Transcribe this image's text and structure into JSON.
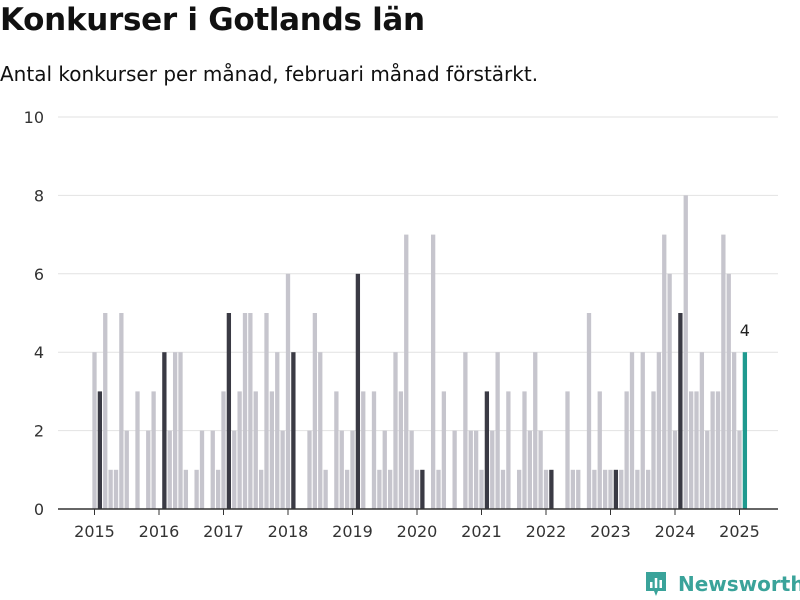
{
  "title": "Konkurser i Gotlands län",
  "subtitle": "Antal konkurser per månad, februari månad förstärkt.",
  "brand": "Newsworthy",
  "colors": {
    "regular": "#c6c5cd",
    "february": "#3a3a44",
    "latest": "#1f9a8f",
    "grid": "#e2e2e2",
    "axis": "#333333",
    "brand": "#3aa39a"
  },
  "chart_data": {
    "type": "bar",
    "x_ticks": [
      "2015",
      "2016",
      "2017",
      "2018",
      "2019",
      "2020",
      "2021",
      "2022",
      "2023",
      "2024",
      "2025"
    ],
    "y_ticks": [
      0,
      2,
      4,
      6,
      8,
      10
    ],
    "ylim": [
      0,
      10
    ],
    "grid": true,
    "start": "2015-01",
    "values": [
      4,
      3,
      5,
      1,
      1,
      5,
      2,
      0,
      3,
      0,
      2,
      3,
      0,
      4,
      2,
      4,
      4,
      1,
      0,
      1,
      2,
      0,
      2,
      1,
      3,
      5,
      2,
      3,
      5,
      5,
      3,
      1,
      5,
      3,
      4,
      2,
      6,
      4,
      0,
      0,
      2,
      5,
      4,
      1,
      0,
      3,
      2,
      1,
      2,
      6,
      3,
      0,
      3,
      1,
      2,
      1,
      4,
      3,
      7,
      2,
      1,
      1,
      0,
      7,
      1,
      3,
      0,
      2,
      0,
      4,
      2,
      2,
      1,
      3,
      2,
      4,
      1,
      3,
      0,
      1,
      3,
      2,
      4,
      2,
      1,
      1,
      0,
      0,
      3,
      1,
      1,
      0,
      5,
      1,
      3,
      1,
      1,
      1,
      1,
      3,
      4,
      1,
      4,
      1,
      3,
      4,
      7,
      6,
      2,
      5,
      8,
      3,
      3,
      4,
      2,
      3,
      3,
      7,
      6,
      4,
      2,
      4
    ],
    "highlight_month": "februari",
    "latest_label": "4"
  }
}
